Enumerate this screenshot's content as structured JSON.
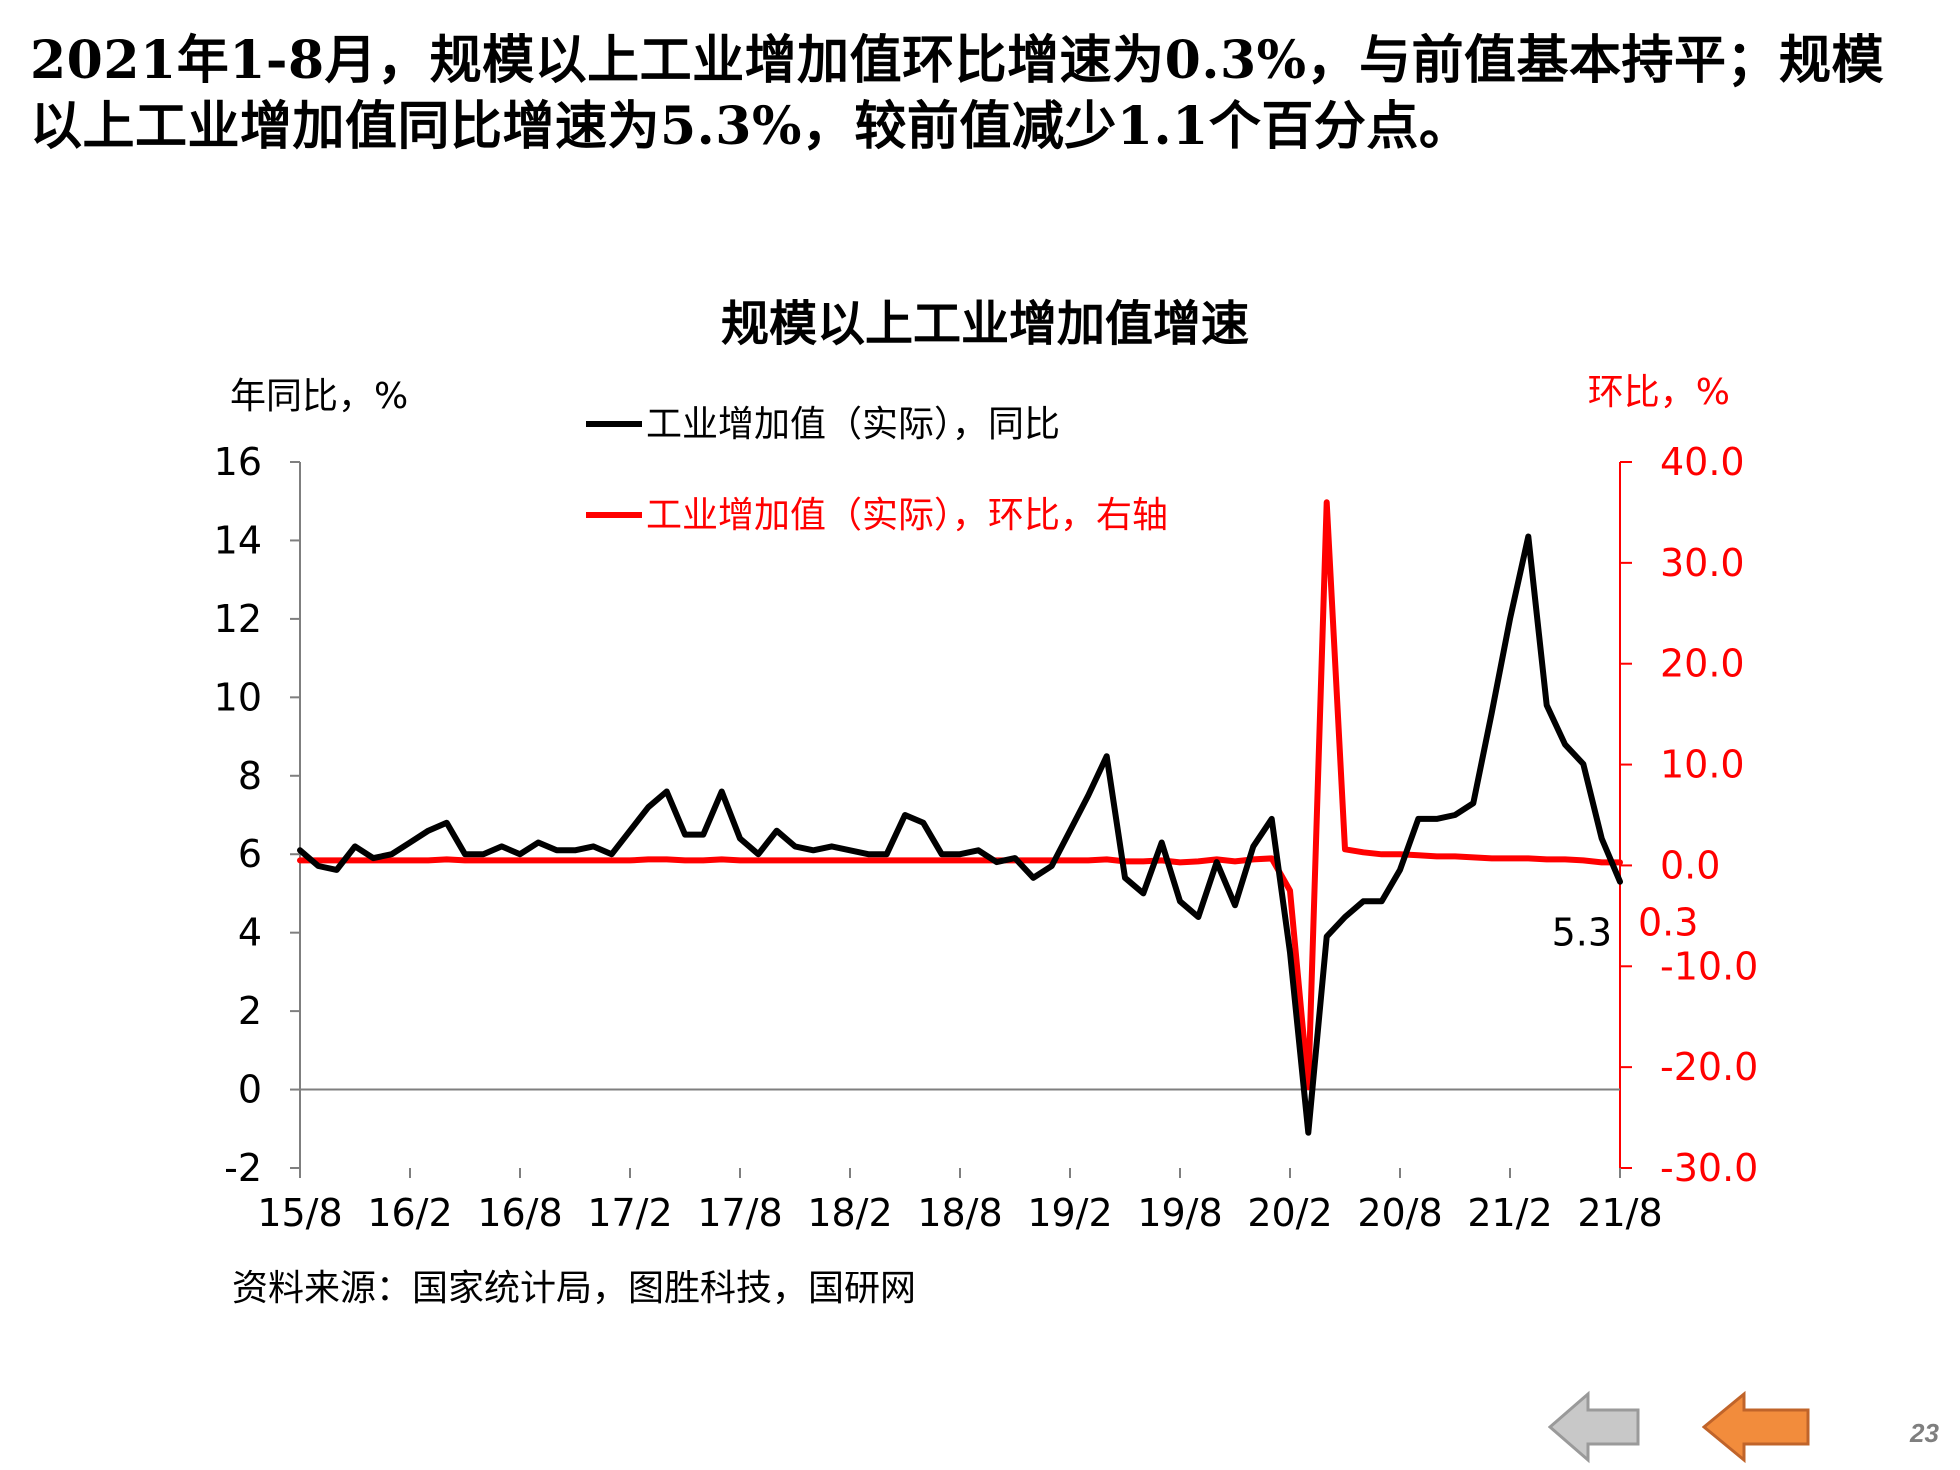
{
  "headline": {
    "line1": "2021年1-8月，规模以上工业增加值环比增速为0.3%，与前值基本持平；规模",
    "line2": "以上工业增加值同比增速为5.3%，较前值减少1.1个百分点。"
  },
  "source": "资料来源：国家统计局，图胜科技，国研网",
  "page_number": "23",
  "nav": {
    "back_icon": "grey-left-arrow-icon",
    "return_icon": "orange-left-arrow-icon"
  },
  "colors": {
    "yoy": "#000000",
    "mom": "#ff0000",
    "axis": "#7f7f7f",
    "back_arrow": "#c8c8c8",
    "return_arrow": "#f28c3c"
  },
  "chart_data": {
    "type": "line",
    "title": "规模以上工业增加值增速",
    "ylabel_left": "年同比，%",
    "ylabel_right": "环比，%",
    "y_left": {
      "min": -2,
      "max": 16,
      "step": 2,
      "tick_labels": [
        "-2",
        "0",
        "2",
        "4",
        "6",
        "8",
        "10",
        "12",
        "14",
        "16"
      ]
    },
    "y_right": {
      "min": -30,
      "max": 40,
      "step": 10,
      "tick_labels": [
        "-30.0",
        "-20.0",
        "-10.0",
        "0.0",
        "10.0",
        "20.0",
        "30.0",
        "40.0"
      ]
    },
    "x_tick_labels": [
      "15/8",
      "16/2",
      "16/8",
      "17/2",
      "17/8",
      "18/2",
      "18/8",
      "19/2",
      "19/8",
      "20/2",
      "20/8",
      "21/2",
      "21/8"
    ],
    "x_start": "2015-08",
    "x_end": "2021-08",
    "legend_position": "top-center",
    "series": [
      {
        "name": "工业增加值（实际），同比",
        "axis": "left",
        "color": "#000000",
        "values": [
          6.1,
          5.7,
          5.6,
          6.2,
          5.9,
          6.0,
          6.3,
          6.6,
          6.8,
          6.0,
          6.0,
          6.2,
          6.0,
          6.3,
          6.1,
          6.1,
          6.2,
          6.0,
          6.6,
          7.2,
          7.6,
          6.5,
          6.5,
          7.6,
          6.4,
          6.0,
          6.6,
          6.2,
          6.1,
          6.2,
          6.1,
          6.0,
          6.0,
          7.0,
          6.8,
          6.0,
          6.0,
          6.1,
          5.8,
          5.9,
          5.4,
          5.7,
          6.6,
          7.5,
          8.5,
          5.4,
          5.0,
          6.3,
          4.8,
          4.4,
          5.8,
          4.7,
          6.2,
          6.9,
          3.5,
          -1.1,
          3.9,
          4.4,
          4.8,
          4.8,
          5.6,
          6.9,
          6.9,
          7.0,
          7.3,
          9.6,
          12.0,
          14.1,
          9.8,
          8.8,
          8.3,
          6.4,
          5.3
        ],
        "end_label": "5.3"
      },
      {
        "name": "工业增加值（实际），环比，右轴",
        "axis": "right",
        "color": "#ff0000",
        "values": [
          0.5,
          0.5,
          0.5,
          0.5,
          0.5,
          0.5,
          0.5,
          0.5,
          0.6,
          0.5,
          0.5,
          0.5,
          0.5,
          0.5,
          0.5,
          0.5,
          0.5,
          0.5,
          0.5,
          0.6,
          0.6,
          0.5,
          0.5,
          0.6,
          0.5,
          0.5,
          0.5,
          0.5,
          0.5,
          0.5,
          0.5,
          0.5,
          0.5,
          0.5,
          0.5,
          0.5,
          0.5,
          0.5,
          0.5,
          0.5,
          0.5,
          0.5,
          0.5,
          0.5,
          0.6,
          0.4,
          0.4,
          0.5,
          0.3,
          0.4,
          0.6,
          0.4,
          0.6,
          0.7,
          -2.5,
          -22.0,
          36.0,
          1.6,
          1.3,
          1.1,
          1.1,
          1.0,
          0.9,
          0.9,
          0.8,
          0.7,
          0.7,
          0.7,
          0.6,
          0.6,
          0.5,
          0.3,
          0.3
        ],
        "end_label": "0.3"
      }
    ]
  }
}
